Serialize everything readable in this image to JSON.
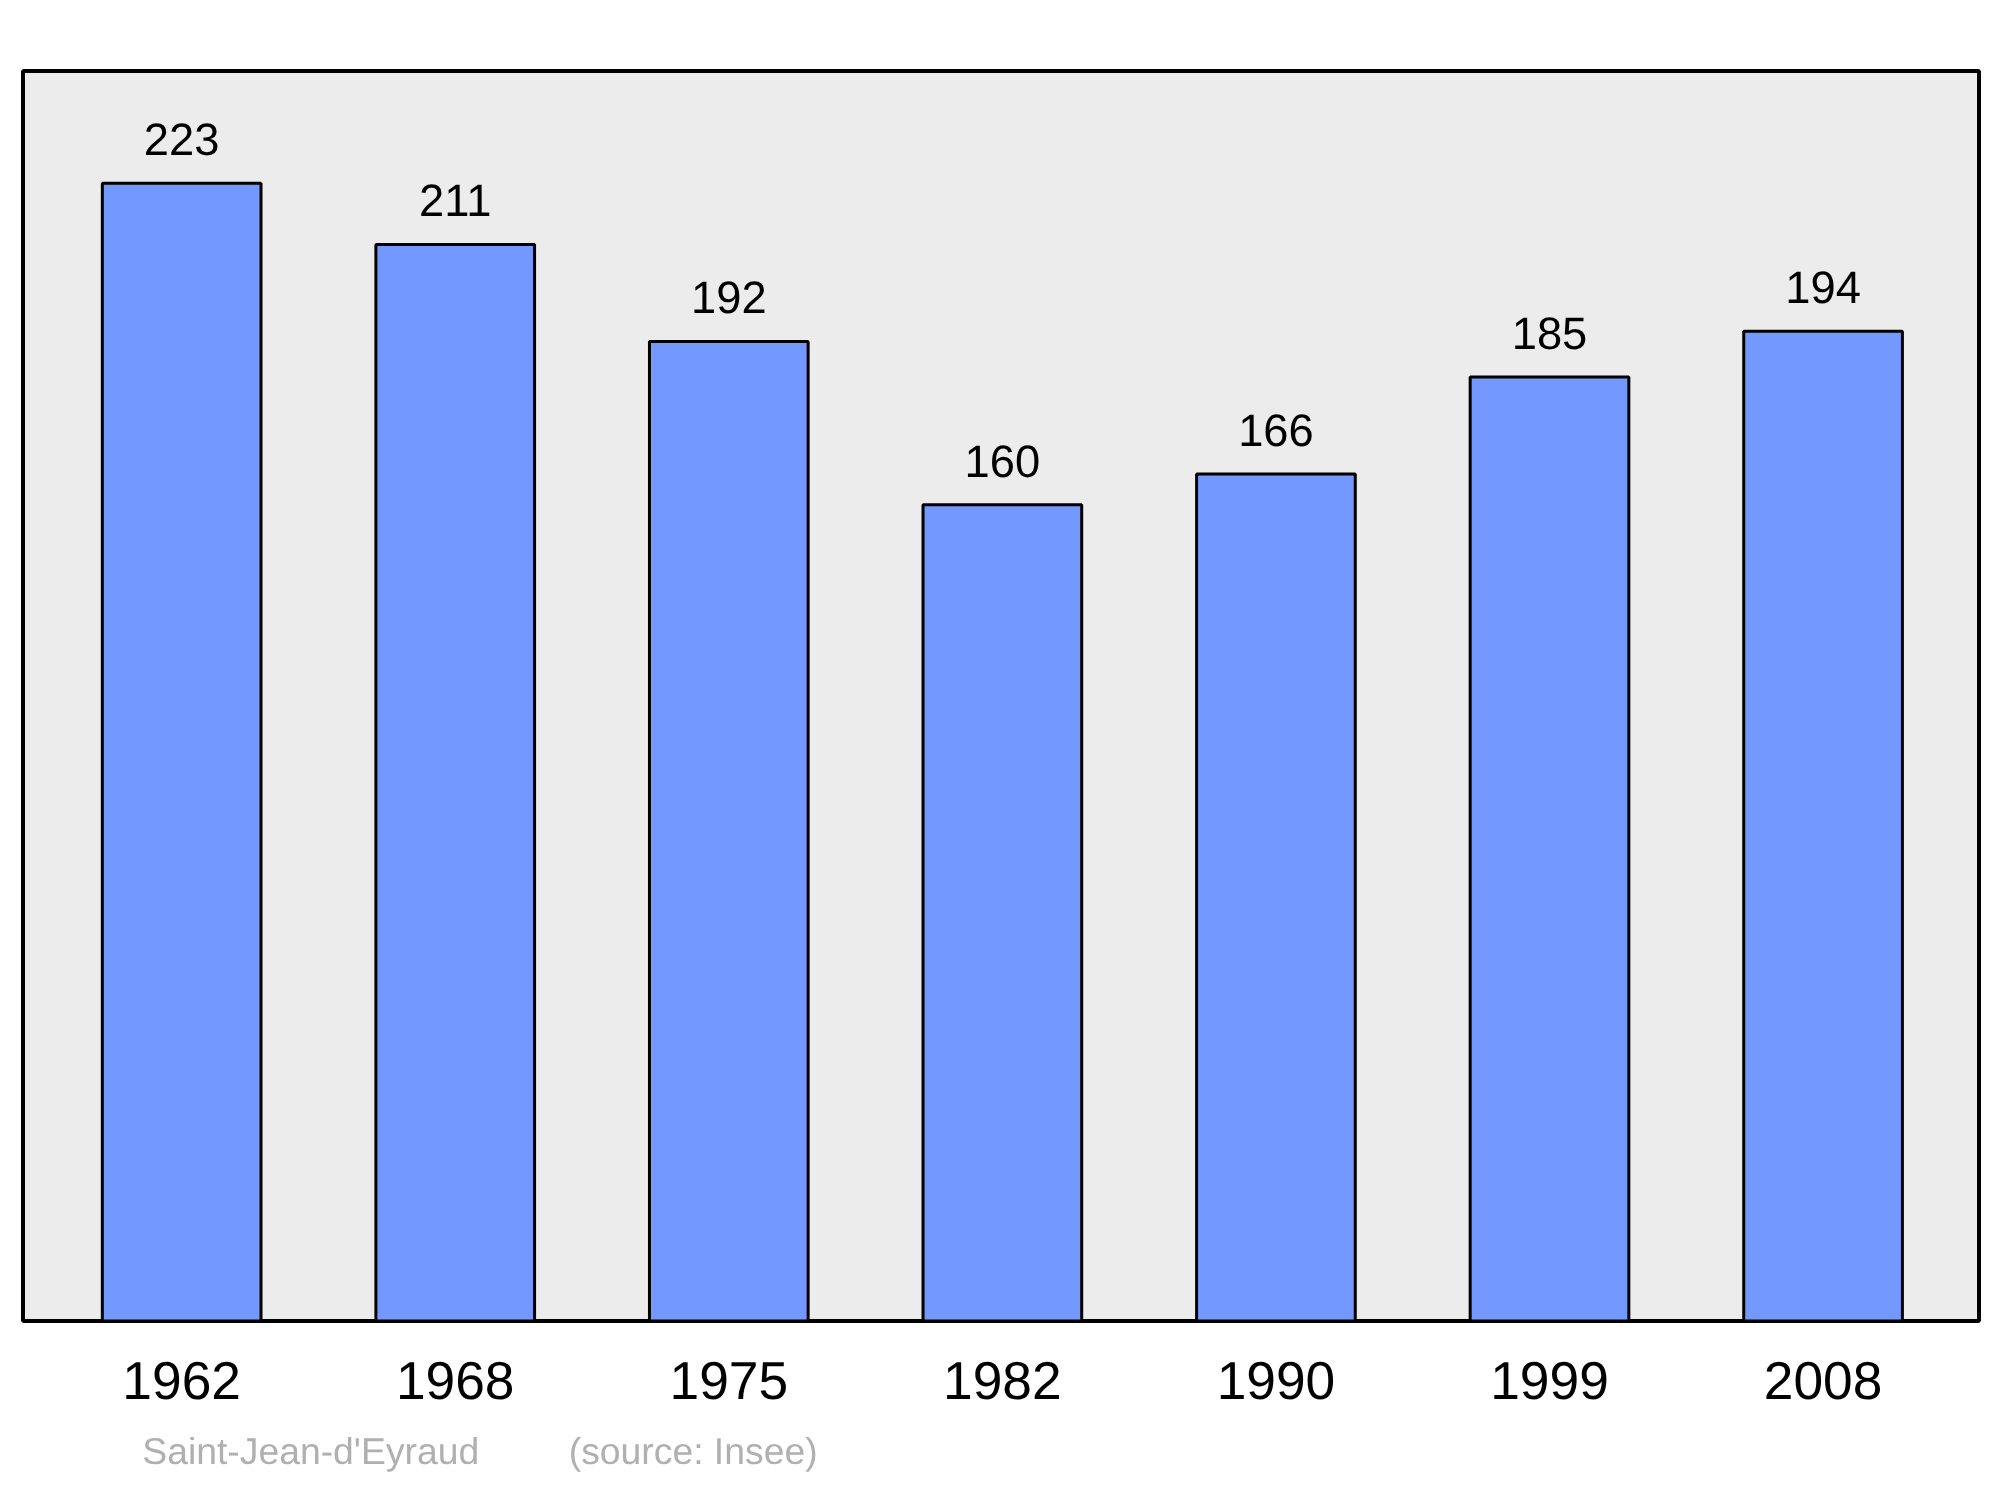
{
  "chart_data": {
    "type": "bar",
    "categories": [
      "1962",
      "1968",
      "1975",
      "1982",
      "1990",
      "1999",
      "2008"
    ],
    "values": [
      223,
      211,
      192,
      160,
      166,
      185,
      194
    ],
    "color": "#7399ff",
    "ylim": [
      0,
      245
    ],
    "data_labels": true,
    "grid": false,
    "tick_labels": "x",
    "annotations": [
      "Saint-Jean-d'Eyraud",
      "(source: Insee)"
    ]
  }
}
